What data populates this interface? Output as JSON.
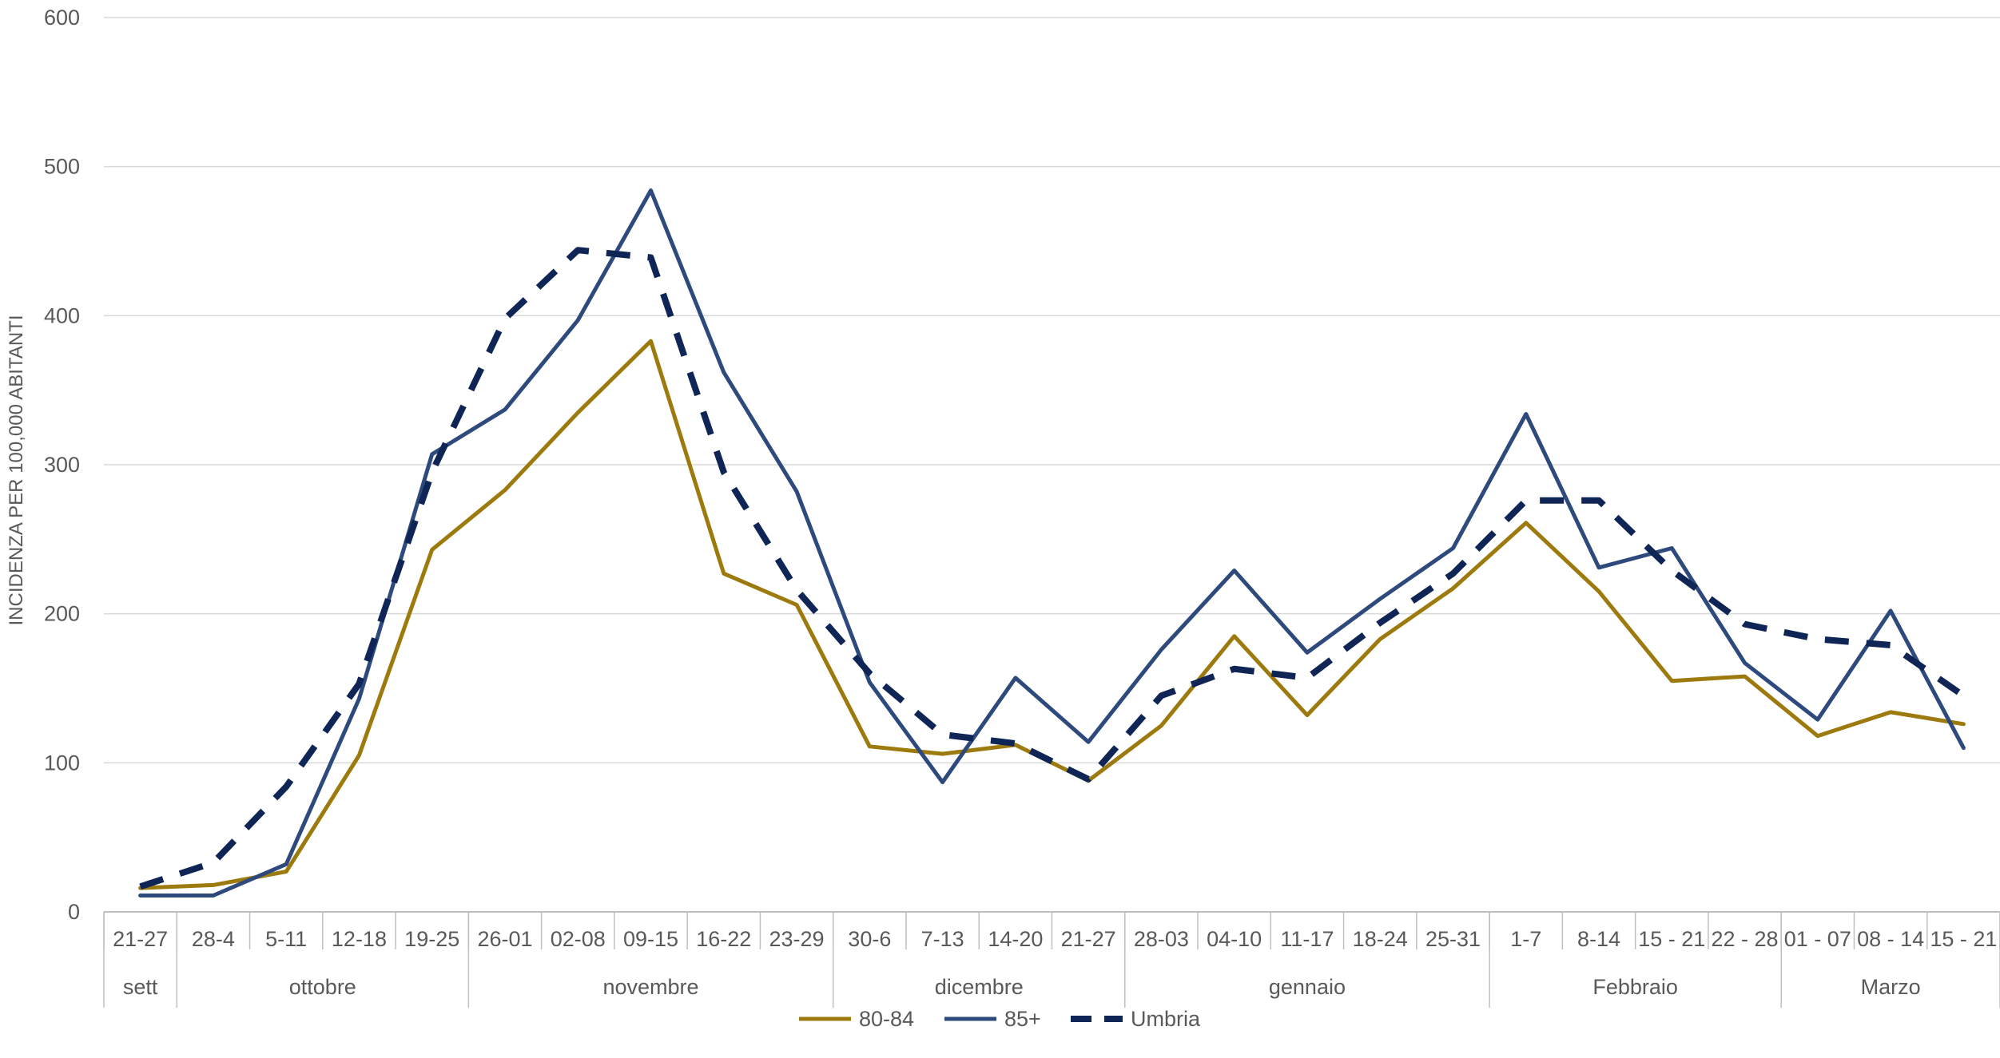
{
  "chart_data": {
    "type": "line",
    "title": "",
    "ylabel": "INCIDENZA PER 100,000 ABITANTI",
    "ylim": [
      0,
      600
    ],
    "yticks": [
      0,
      100,
      200,
      300,
      400,
      500,
      600
    ],
    "grid": true,
    "legend_position": "bottom",
    "categories": [
      "21-27",
      "28-4",
      "5-11",
      "12-18",
      "19-25",
      "26-01",
      "02-08",
      "09-15",
      "16-22",
      "23-29",
      "30-6",
      "7-13",
      "14-20",
      "21-27",
      "28-03",
      "04-10",
      "11-17",
      "18-24",
      "25-31",
      "1-7",
      "8-14",
      "15 - 21",
      "22 - 28",
      "01 - 07",
      "08 - 14",
      "15 - 21"
    ],
    "groups": [
      {
        "label": "sett",
        "count": 1
      },
      {
        "label": "ottobre",
        "count": 4
      },
      {
        "label": "novembre",
        "count": 5
      },
      {
        "label": "dicembre",
        "count": 4
      },
      {
        "label": "gennaio",
        "count": 5
      },
      {
        "label": "Febbraio",
        "count": 4
      },
      {
        "label": "Marzo",
        "count": 3
      }
    ],
    "series": [
      {
        "name": "80-84",
        "color": "#9C7A0D",
        "style": "solid",
        "values": [
          16,
          18,
          27,
          105,
          243,
          283,
          335,
          383,
          227,
          206,
          111,
          106,
          112,
          88,
          125,
          185,
          132,
          183,
          217,
          261,
          215,
          155,
          158,
          118,
          134,
          126
        ]
      },
      {
        "name": "85+",
        "color": "#2E4A7D",
        "style": "solid",
        "values": [
          11,
          11,
          32,
          143,
          307,
          337,
          397,
          484,
          362,
          282,
          154,
          87,
          157,
          114,
          176,
          229,
          174,
          210,
          244,
          334,
          231,
          244,
          167,
          129,
          202,
          110
        ]
      },
      {
        "name": "Umbria",
        "color": "#0F2555",
        "style": "dashed",
        "values": [
          17,
          33,
          84,
          153,
          295,
          398,
          444,
          439,
          295,
          216,
          160,
          119,
          113,
          89,
          145,
          163,
          157,
          194,
          227,
          276,
          276,
          229,
          193,
          183,
          179,
          145
        ]
      }
    ]
  }
}
